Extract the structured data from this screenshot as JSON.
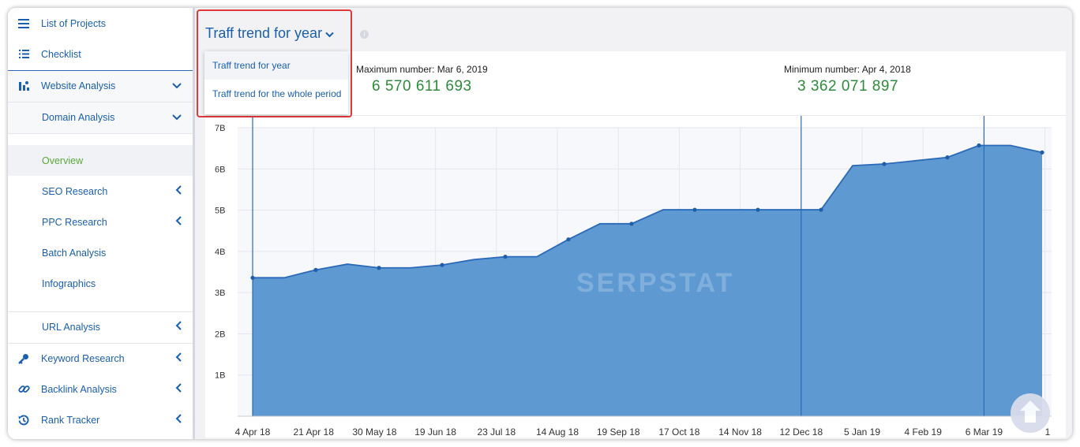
{
  "sidebar": {
    "items": [
      {
        "label": "List of Projects",
        "icon": "list-icon"
      },
      {
        "label": "Checklist",
        "icon": "checklist-icon"
      },
      {
        "label": "Website Analysis",
        "icon": "chart-bar-icon",
        "chevron": "down"
      },
      {
        "label": "Domain Analysis",
        "chevron": "down"
      },
      {
        "label": "Overview",
        "active": true
      },
      {
        "label": "SEO Research",
        "chevron": "left"
      },
      {
        "label": "PPC Research",
        "chevron": "left"
      },
      {
        "label": "Batch Analysis"
      },
      {
        "label": "Infographics"
      },
      {
        "label": "URL Analysis",
        "chevron": "left"
      },
      {
        "label": "Keyword Research",
        "icon": "key-icon",
        "chevron": "left"
      },
      {
        "label": "Backlink Analysis",
        "icon": "link-icon",
        "chevron": "left"
      },
      {
        "label": "Rank Tracker",
        "icon": "history-icon",
        "chevron": "left"
      }
    ]
  },
  "header": {
    "selected_view": "Traff trend for year",
    "dropdown_options": [
      "Traff trend for year",
      "Traff trend for the whole period"
    ]
  },
  "stats": {
    "max_label": "Maximum number: Mar 6, 2019",
    "max_value": "6 570 611 693",
    "min_label": "Minimum number: Apr 4, 2018",
    "min_value": "3 362 071 897"
  },
  "watermark": "SERPSTAT",
  "colors": {
    "accent": "#1b5fae",
    "area_fill": "#5b97d1",
    "area_line": "#2a6ab8",
    "value_green": "#2e8b3c",
    "active_green": "#5aa83a"
  },
  "chart_data": {
    "type": "area",
    "title": "Traff trend for year",
    "x_tick_labels": [
      "4 Apr 18",
      "21 Apr 18",
      "30 May 18",
      "19 Jun 18",
      "23 Jul 18",
      "14 Aug 18",
      "19 Sep 18",
      "17 Oct 18",
      "14 Nov 18",
      "12 Dec 18",
      "5 Jan 19",
      "4 Feb 19",
      "6 Mar 19",
      "1"
    ],
    "y_tick_labels": [
      "7B",
      "6B",
      "5B",
      "4B",
      "3B",
      "2B",
      "1B"
    ],
    "y_ticks": [
      7,
      6,
      5,
      4,
      3,
      2,
      1
    ],
    "ylim": [
      0,
      7
    ],
    "grid": true,
    "series": [
      {
        "values": [
          3.36,
          3.36,
          3.55,
          3.69,
          3.6,
          3.6,
          3.67,
          3.8,
          3.87,
          3.87,
          4.29,
          4.67,
          4.67,
          5.01,
          5.01,
          5.01,
          5.01,
          5.01,
          5.01,
          6.08,
          6.12,
          6.2,
          6.28,
          6.57,
          6.57,
          6.4
        ],
        "markers": [
          true,
          false,
          true,
          false,
          true,
          false,
          true,
          false,
          true,
          false,
          true,
          false,
          true,
          false,
          true,
          false,
          true,
          false,
          true,
          false,
          true,
          false,
          true,
          true,
          false,
          true
        ]
      }
    ],
    "vertical_markers": [
      "4 Apr 18",
      "12 Dec 18",
      "6 Mar 19"
    ]
  }
}
